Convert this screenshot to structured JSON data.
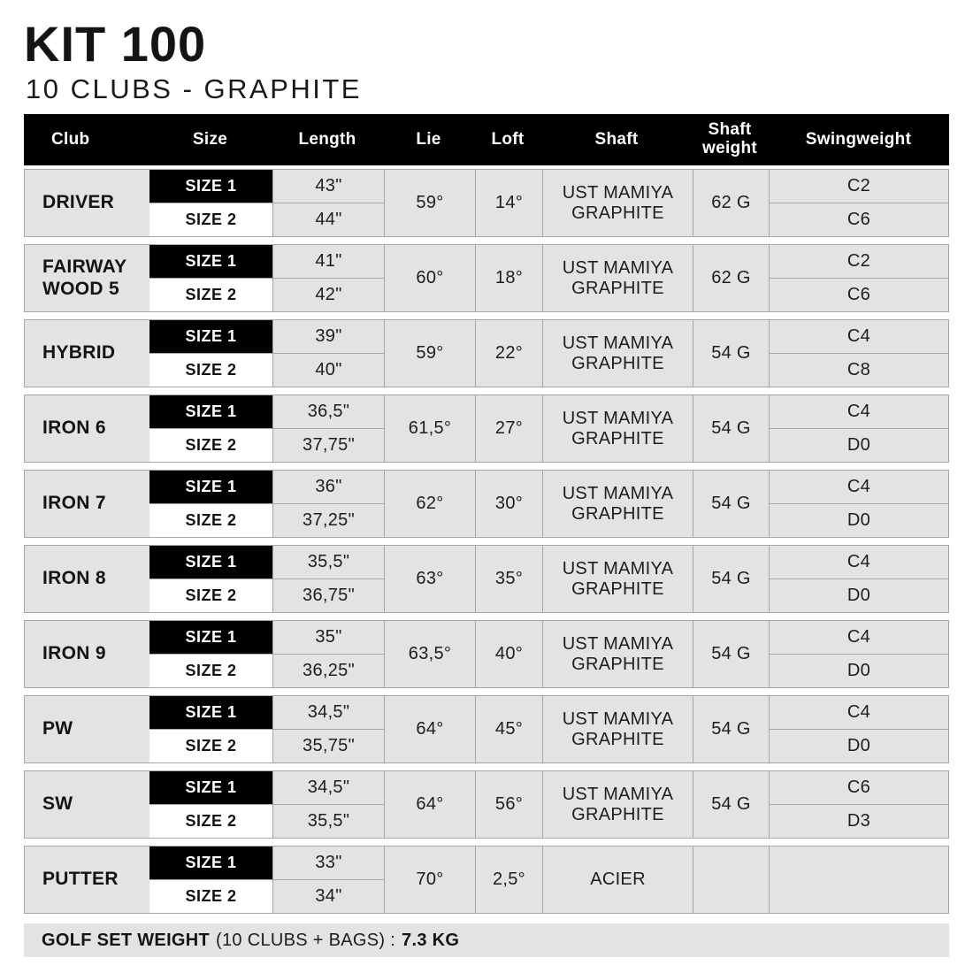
{
  "title": "KIT 100",
  "subtitle": "10 CLUBS - GRAPHITE",
  "colors": {
    "header_bg": "#000000",
    "header_text": "#ffffff",
    "cell_bg": "#e3e3e2",
    "border": "#a6a6a6",
    "size1_bg": "#000000",
    "size1_text": "#ffffff",
    "size2_bg": "#ffffff",
    "text": "#1d1d1d"
  },
  "table": {
    "headers": {
      "club": "Club",
      "size": "Size",
      "length": "Length",
      "lie": "Lie",
      "loft": "Loft",
      "shaft": "Shaft",
      "shaft_weight": "Shaft weight",
      "swingweight": "Swingweight"
    },
    "rows": [
      {
        "club": "DRIVER",
        "size1": "SIZE 1",
        "size2": "SIZE 2",
        "length1": "43\"",
        "length2": "44\"",
        "lie": "59°",
        "loft": "14°",
        "shaft": "UST MAMIYA GRAPHITE",
        "shaft_weight": "62 G",
        "swingweight1": "C2",
        "swingweight2": "C6"
      },
      {
        "club": "FAIRWAY WOOD 5",
        "size1": "SIZE 1",
        "size2": "SIZE 2",
        "length1": "41\"",
        "length2": "42\"",
        "lie": "60°",
        "loft": "18°",
        "shaft": "UST MAMIYA GRAPHITE",
        "shaft_weight": "62 G",
        "swingweight1": "C2",
        "swingweight2": "C6"
      },
      {
        "club": "HYBRID",
        "size1": "SIZE 1",
        "size2": "SIZE 2",
        "length1": "39\"",
        "length2": "40\"",
        "lie": "59°",
        "loft": "22°",
        "shaft": "UST MAMIYA GRAPHITE",
        "shaft_weight": "54 G",
        "swingweight1": "C4",
        "swingweight2": "C8"
      },
      {
        "club": "IRON 6",
        "size1": "SIZE 1",
        "size2": "SIZE 2",
        "length1": "36,5\"",
        "length2": "37,75\"",
        "lie": "61,5°",
        "loft": "27°",
        "shaft": "UST MAMIYA GRAPHITE",
        "shaft_weight": "54 G",
        "swingweight1": "C4",
        "swingweight2": "D0"
      },
      {
        "club": "IRON 7",
        "size1": "SIZE 1",
        "size2": "SIZE 2",
        "length1": "36\"",
        "length2": "37,25\"",
        "lie": "62°",
        "loft": "30°",
        "shaft": "UST MAMIYA GRAPHITE",
        "shaft_weight": "54 G",
        "swingweight1": "C4",
        "swingweight2": "D0"
      },
      {
        "club": "IRON 8",
        "size1": "SIZE 1",
        "size2": "SIZE 2",
        "length1": "35,5\"",
        "length2": "36,75\"",
        "lie": "63°",
        "loft": "35°",
        "shaft": "UST MAMIYA GRAPHITE",
        "shaft_weight": "54 G",
        "swingweight1": "C4",
        "swingweight2": "D0"
      },
      {
        "club": "IRON 9",
        "size1": "SIZE 1",
        "size2": "SIZE 2",
        "length1": "35\"",
        "length2": "36,25\"",
        "lie": "63,5°",
        "loft": "40°",
        "shaft": "UST MAMIYA GRAPHITE",
        "shaft_weight": "54 G",
        "swingweight1": "C4",
        "swingweight2": "D0"
      },
      {
        "club": "PW",
        "size1": "SIZE 1",
        "size2": "SIZE 2",
        "length1": "34,5\"",
        "length2": "35,75\"",
        "lie": "64°",
        "loft": "45°",
        "shaft": "UST MAMIYA GRAPHITE",
        "shaft_weight": "54 G",
        "swingweight1": "C4",
        "swingweight2": "D0"
      },
      {
        "club": "SW",
        "size1": "SIZE 1",
        "size2": "SIZE 2",
        "length1": "34,5\"",
        "length2": "35,5\"",
        "lie": "64°",
        "loft": "56°",
        "shaft": "UST MAMIYA GRAPHITE",
        "shaft_weight": "54 G",
        "swingweight1": "C6",
        "swingweight2": "D3"
      },
      {
        "club": "PUTTER",
        "size1": "SIZE 1",
        "size2": "SIZE 2",
        "length1": "33\"",
        "length2": "34\"",
        "lie": "70°",
        "loft": "2,5°",
        "shaft": "ACIER",
        "shaft_weight": "",
        "swingweight1": "",
        "swingweight2": ""
      }
    ]
  },
  "footer": {
    "label_bold": "GOLF SET WEIGHT",
    "label_normal": "(10 CLUBS + BAGS) :",
    "value": "7.3 KG"
  }
}
